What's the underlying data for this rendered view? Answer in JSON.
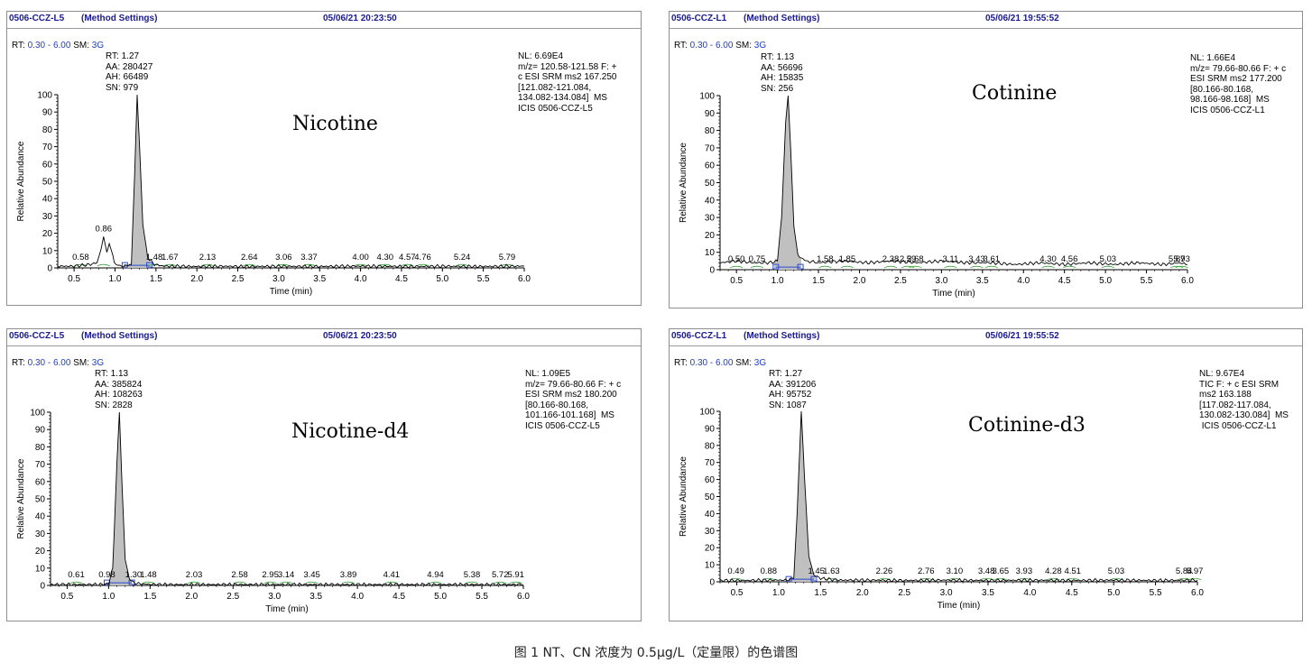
{
  "caption": "图 1 NT、CN 浓度为 0.5μg/L（定量限）的色谱图",
  "colors": {
    "header_text": "#1a1a8c",
    "rt_value": "#1f3fbf",
    "peak_fill": "#c0c0c0",
    "baseline_marker": "#2b4bd1",
    "baseline_green": "#3aa53a"
  },
  "chart_data": [
    {
      "type": "line",
      "header": {
        "sample": "0506-CCZ-L5",
        "method": "(Method Settings)",
        "datetime": "05/06/21 20:23:50"
      },
      "rt_label": "RT:",
      "rt_range": "0.30 - 6.00",
      "sm_label": "SM:",
      "sm_value": "3G",
      "peak_info": [
        "RT: 1.27",
        "AA: 280427",
        "AH: 66489",
        "SN: 979"
      ],
      "nl_info": [
        "NL: 6.69E4",
        "m/z= 120.58-121.58 F: +",
        "c ESI SRM ms2 167.250",
        "[121.082-121.084,",
        "134.082-134.084]  MS",
        "ICIS 0506-CCZ-L5"
      ],
      "compound": "Nicotine",
      "ylabel": "Relative Abundance",
      "xlabel": "Time (min)",
      "xlim": [
        0.3,
        6.0
      ],
      "ylim": [
        0,
        100
      ],
      "xticks": [
        "0.5",
        "1.0",
        "1.5",
        "2.0",
        "2.5",
        "3.0",
        "3.5",
        "4.0",
        "4.5",
        "5.0",
        "5.5",
        "6.0"
      ],
      "yticks": [
        "0",
        "10",
        "20",
        "30",
        "40",
        "50",
        "60",
        "70",
        "80",
        "90",
        "100"
      ],
      "peak_labels": [
        [
          0.58,
          "0.58"
        ],
        [
          0.86,
          "0.86"
        ],
        [
          1.48,
          "1.48"
        ],
        [
          1.67,
          "1.67"
        ],
        [
          2.13,
          "2.13"
        ],
        [
          2.64,
          "2.64"
        ],
        [
          3.06,
          "3.06"
        ],
        [
          3.37,
          "3.37"
        ],
        [
          4.0,
          "4.00"
        ],
        [
          4.3,
          "4.30"
        ],
        [
          4.57,
          "4.57"
        ],
        [
          4.76,
          "4.76"
        ],
        [
          5.24,
          "5.24"
        ],
        [
          5.79,
          "5.79"
        ]
      ],
      "series": [
        {
          "x": [
            0.3,
            0.5,
            0.6,
            0.7,
            0.78,
            0.83,
            0.86,
            0.9,
            0.93,
            0.96,
            0.99,
            1.03,
            1.1,
            1.2,
            1.24,
            1.27,
            1.3,
            1.34,
            1.4,
            1.48,
            1.6,
            1.8,
            2.0,
            2.3,
            2.6,
            3.0,
            3.4,
            3.8,
            4.2,
            4.6,
            5.0,
            5.4,
            5.8,
            6.0
          ],
          "y": [
            1,
            1,
            1.5,
            2,
            3,
            11,
            18,
            9,
            14,
            10,
            3,
            1.5,
            1,
            2,
            55,
            100,
            70,
            25,
            6,
            2,
            1,
            1,
            0.8,
            1,
            0.8,
            1,
            0.8,
            1,
            1,
            0.8,
            1,
            0.8,
            1,
            1
          ]
        }
      ],
      "main_peak_rt": 1.27
    },
    {
      "type": "line",
      "header": {
        "sample": "0506-CCZ-L1",
        "method": "(Method Settings)",
        "datetime": "05/06/21 19:55:52"
      },
      "rt_label": "RT:",
      "rt_range": "0.30 - 6.00",
      "sm_label": "SM:",
      "sm_value": "3G",
      "peak_info": [
        "RT: 1.13",
        "AA: 56696",
        "AH: 15835",
        "SN: 256"
      ],
      "nl_info": [
        "NL: 1.66E4",
        "m/z= 79.66-80.66 F: + c",
        "ESI SRM ms2 177.200",
        "[80.166-80.168,",
        "98.166-98.168]  MS",
        "ICIS 0506-CCZ-L1"
      ],
      "compound": "Cotinine",
      "ylabel": "Relative Abundance",
      "xlabel": "Time (min)",
      "xlim": [
        0.3,
        6.0
      ],
      "ylim": [
        0,
        100
      ],
      "xticks": [
        "0.5",
        "1.0",
        "1.5",
        "2.0",
        "2.5",
        "3.0",
        "3.5",
        "4.0",
        "4.5",
        "5.0",
        "5.5",
        "6.0"
      ],
      "yticks": [
        "0",
        "10",
        "20",
        "30",
        "40",
        "50",
        "60",
        "70",
        "80",
        "90",
        "100"
      ],
      "peak_labels": [
        [
          0.5,
          "0.50"
        ],
        [
          0.75,
          "0.75"
        ],
        [
          1.58,
          "1.58"
        ],
        [
          1.85,
          "1.85"
        ],
        [
          2.38,
          "2.38"
        ],
        [
          2.59,
          "2.59"
        ],
        [
          2.68,
          "2.68"
        ],
        [
          3.11,
          "3.11"
        ],
        [
          3.43,
          "3.43"
        ],
        [
          3.61,
          "3.61"
        ],
        [
          4.3,
          "4.30"
        ],
        [
          4.56,
          "4.56"
        ],
        [
          5.03,
          "5.03"
        ],
        [
          5.87,
          "5.87"
        ],
        [
          5.93,
          "5.93"
        ]
      ],
      "series": [
        {
          "x": [
            0.3,
            0.5,
            0.7,
            0.9,
            1.0,
            1.05,
            1.1,
            1.13,
            1.16,
            1.2,
            1.25,
            1.35,
            1.5,
            1.8,
            2.1,
            2.4,
            2.7,
            3.0,
            3.3,
            3.6,
            3.9,
            4.2,
            4.5,
            4.8,
            5.1,
            5.4,
            5.7,
            5.9,
            6.0
          ],
          "y": [
            4,
            5,
            4,
            4,
            5,
            30,
            85,
            100,
            70,
            25,
            8,
            5,
            4,
            5,
            4,
            5,
            4,
            5,
            4,
            4,
            3,
            4,
            3,
            4,
            3,
            4,
            3,
            4,
            3
          ]
        }
      ],
      "main_peak_rt": 1.13
    },
    {
      "type": "line",
      "header": {
        "sample": "0506-CCZ-L5",
        "method": "(Method Settings)",
        "datetime": "05/06/21 20:23:50"
      },
      "rt_label": "RT:",
      "rt_range": "0.30 - 6.00",
      "sm_label": "SM:",
      "sm_value": "3G",
      "peak_info": [
        "RT: 1.13",
        "AA: 385824",
        "AH: 108263",
        "SN: 2828"
      ],
      "nl_info": [
        "NL: 1.09E5",
        "m/z= 79.66-80.66 F: + c",
        "ESI SRM ms2 180.200",
        "[80.166-80.168,",
        "101.166-101.168]  MS",
        "ICIS 0506-CCZ-L5"
      ],
      "compound": "Nicotine-d4",
      "ylabel": "Relative Abundance",
      "xlabel": "Time (min)",
      "xlim": [
        0.3,
        6.0
      ],
      "ylim": [
        0,
        100
      ],
      "xticks": [
        "0.5",
        "1.0",
        "1.5",
        "2.0",
        "2.5",
        "3.0",
        "3.5",
        "4.0",
        "4.5",
        "5.0",
        "5.5",
        "6.0"
      ],
      "yticks": [
        "0",
        "10",
        "20",
        "30",
        "40",
        "50",
        "60",
        "70",
        "80",
        "90",
        "100"
      ],
      "peak_labels": [
        [
          0.61,
          "0.61"
        ],
        [
          0.98,
          "0.98"
        ],
        [
          1.3,
          "1.30"
        ],
        [
          1.48,
          "1.48"
        ],
        [
          2.03,
          "2.03"
        ],
        [
          2.58,
          "2.58"
        ],
        [
          2.95,
          "2.95"
        ],
        [
          3.14,
          "3.14"
        ],
        [
          3.45,
          "3.45"
        ],
        [
          3.89,
          "3.89"
        ],
        [
          4.41,
          "4.41"
        ],
        [
          4.94,
          "4.94"
        ],
        [
          5.38,
          "5.38"
        ],
        [
          5.72,
          "5.72"
        ],
        [
          5.91,
          "5.91"
        ]
      ],
      "series": [
        {
          "x": [
            0.3,
            0.6,
            0.9,
            1.0,
            1.05,
            1.1,
            1.13,
            1.16,
            1.2,
            1.25,
            1.3,
            1.4,
            1.6,
            2.0,
            2.5,
            3.0,
            3.5,
            4.0,
            4.5,
            5.0,
            5.5,
            6.0
          ],
          "y": [
            0.5,
            0.5,
            0.5,
            0.8,
            10,
            70,
            100,
            60,
            15,
            4,
            1.5,
            0.8,
            0.5,
            0.5,
            0.5,
            0.5,
            0.5,
            0.5,
            0.5,
            0.5,
            0.5,
            0.5
          ]
        }
      ],
      "main_peak_rt": 1.13
    },
    {
      "type": "line",
      "header": {
        "sample": "0506-CCZ-L1",
        "method": "(Method Settings)",
        "datetime": "05/06/21 19:55:52"
      },
      "rt_label": "RT:",
      "rt_range": "0.30 - 6.00",
      "sm_label": "SM:",
      "sm_value": "3G",
      "peak_info": [
        "RT: 1.27",
        "AA: 391206",
        "AH: 95752",
        "SN: 1087"
      ],
      "nl_info": [
        "NL: 9.67E4",
        "TIC F: + c ESI SRM",
        "ms2 163.188",
        "[117.082-117.084,",
        "130.082-130.084]  MS",
        " ICIS 0506-CCZ-L1"
      ],
      "compound": "Cotinine-d3",
      "ylabel": "Relative Abundance",
      "xlabel": "Time (min)",
      "xlim": [
        0.3,
        6.0
      ],
      "ylim": [
        0,
        100
      ],
      "xticks": [
        "0.5",
        "1.0",
        "1.5",
        "2.0",
        "2.5",
        "3.0",
        "3.5",
        "4.0",
        "4.5",
        "5.0",
        "5.5",
        "6.0"
      ],
      "yticks": [
        "0",
        "10",
        "20",
        "30",
        "40",
        "50",
        "60",
        "70",
        "80",
        "90",
        "100"
      ],
      "peak_labels": [
        [
          0.49,
          "0.49"
        ],
        [
          0.88,
          "0.88"
        ],
        [
          1.45,
          "1.45"
        ],
        [
          1.63,
          "1.63"
        ],
        [
          2.26,
          "2.26"
        ],
        [
          2.76,
          "2.76"
        ],
        [
          3.1,
          "3.10"
        ],
        [
          3.48,
          "3.48"
        ],
        [
          3.65,
          "3.65"
        ],
        [
          3.93,
          "3.93"
        ],
        [
          4.28,
          "4.28"
        ],
        [
          4.51,
          "4.51"
        ],
        [
          5.03,
          "5.03"
        ],
        [
          5.84,
          "5.84"
        ],
        [
          5.97,
          "5.97"
        ]
      ],
      "series": [
        {
          "x": [
            0.3,
            0.6,
            0.9,
            1.1,
            1.18,
            1.22,
            1.27,
            1.31,
            1.36,
            1.42,
            1.5,
            1.7,
            2.0,
            2.5,
            3.0,
            3.5,
            4.0,
            4.5,
            5.0,
            5.5,
            6.0
          ],
          "y": [
            0.8,
            0.8,
            1,
            1,
            2,
            40,
            100,
            60,
            15,
            4,
            2,
            1,
            1,
            0.8,
            1,
            0.8,
            1,
            0.8,
            1,
            0.8,
            1
          ]
        }
      ],
      "main_peak_rt": 1.27
    }
  ]
}
